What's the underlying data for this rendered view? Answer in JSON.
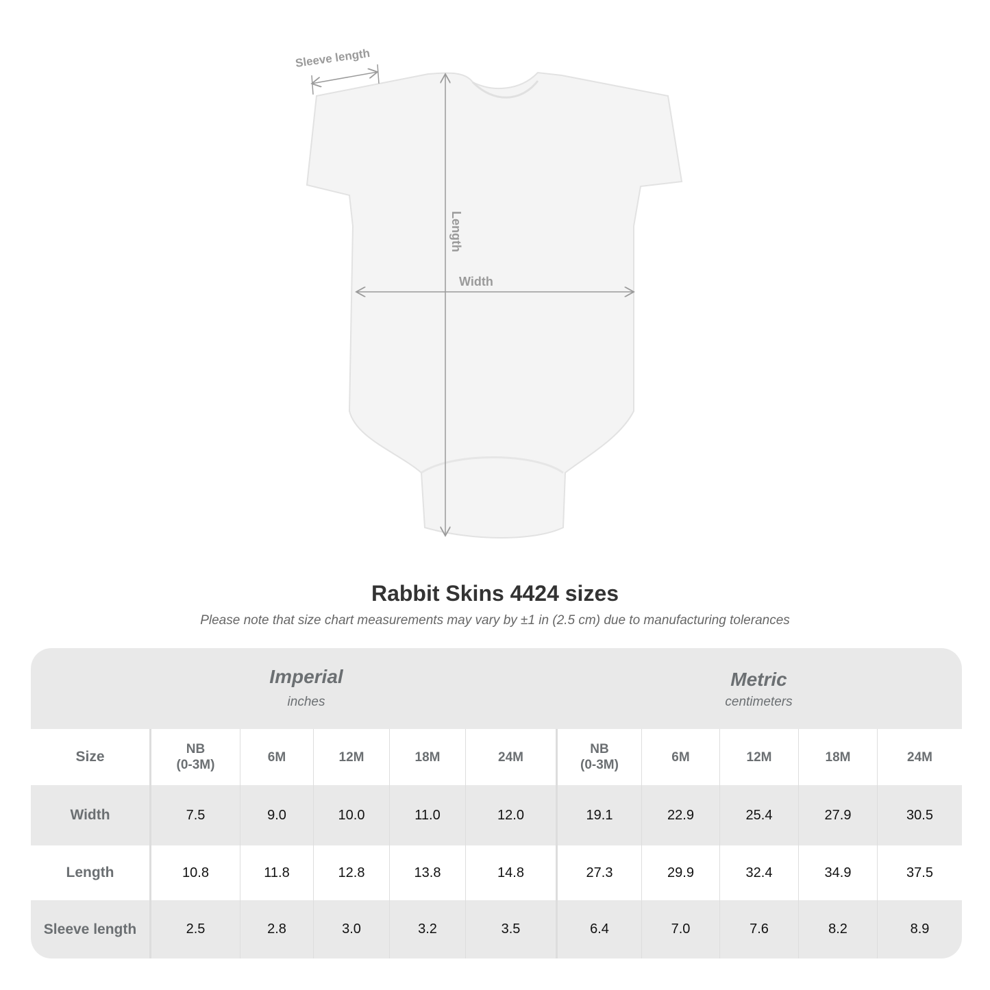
{
  "diagram": {
    "labels": {
      "sleeve": "Sleeve length",
      "length": "Length",
      "width": "Width"
    },
    "colors": {
      "garment": "#f4f4f4",
      "measure_line": "#9a9a9a"
    }
  },
  "title": "Rabbit Skins 4424 sizes",
  "subtitle": "Please note that size chart measurements may vary by ±1 in (2.5 cm) due to manufacturing tolerances",
  "table": {
    "groups": [
      {
        "name": "Imperial",
        "unit": "inches"
      },
      {
        "name": "Metric",
        "unit": "centimeters"
      }
    ],
    "size_label": "Size",
    "sizes": [
      "NB\n(0-3M)",
      "6M",
      "12M",
      "18M",
      "24M",
      "NB\n(0-3M)",
      "6M",
      "12M",
      "18M",
      "24M"
    ],
    "rows": [
      {
        "label": "Width",
        "values": [
          "7.5",
          "9.0",
          "10.0",
          "11.0",
          "12.0",
          "19.1",
          "22.9",
          "25.4",
          "27.9",
          "30.5"
        ]
      },
      {
        "label": "Length",
        "values": [
          "10.8",
          "11.8",
          "12.8",
          "13.8",
          "14.8",
          "27.3",
          "29.9",
          "32.4",
          "34.9",
          "37.5"
        ]
      },
      {
        "label": "Sleeve length",
        "values": [
          "2.5",
          "2.8",
          "3.0",
          "3.2",
          "3.5",
          "6.4",
          "7.0",
          "7.6",
          "8.2",
          "8.9"
        ]
      }
    ],
    "colors": {
      "header_bg": "#e9e9e9",
      "label_text": "#6b6f72"
    }
  }
}
